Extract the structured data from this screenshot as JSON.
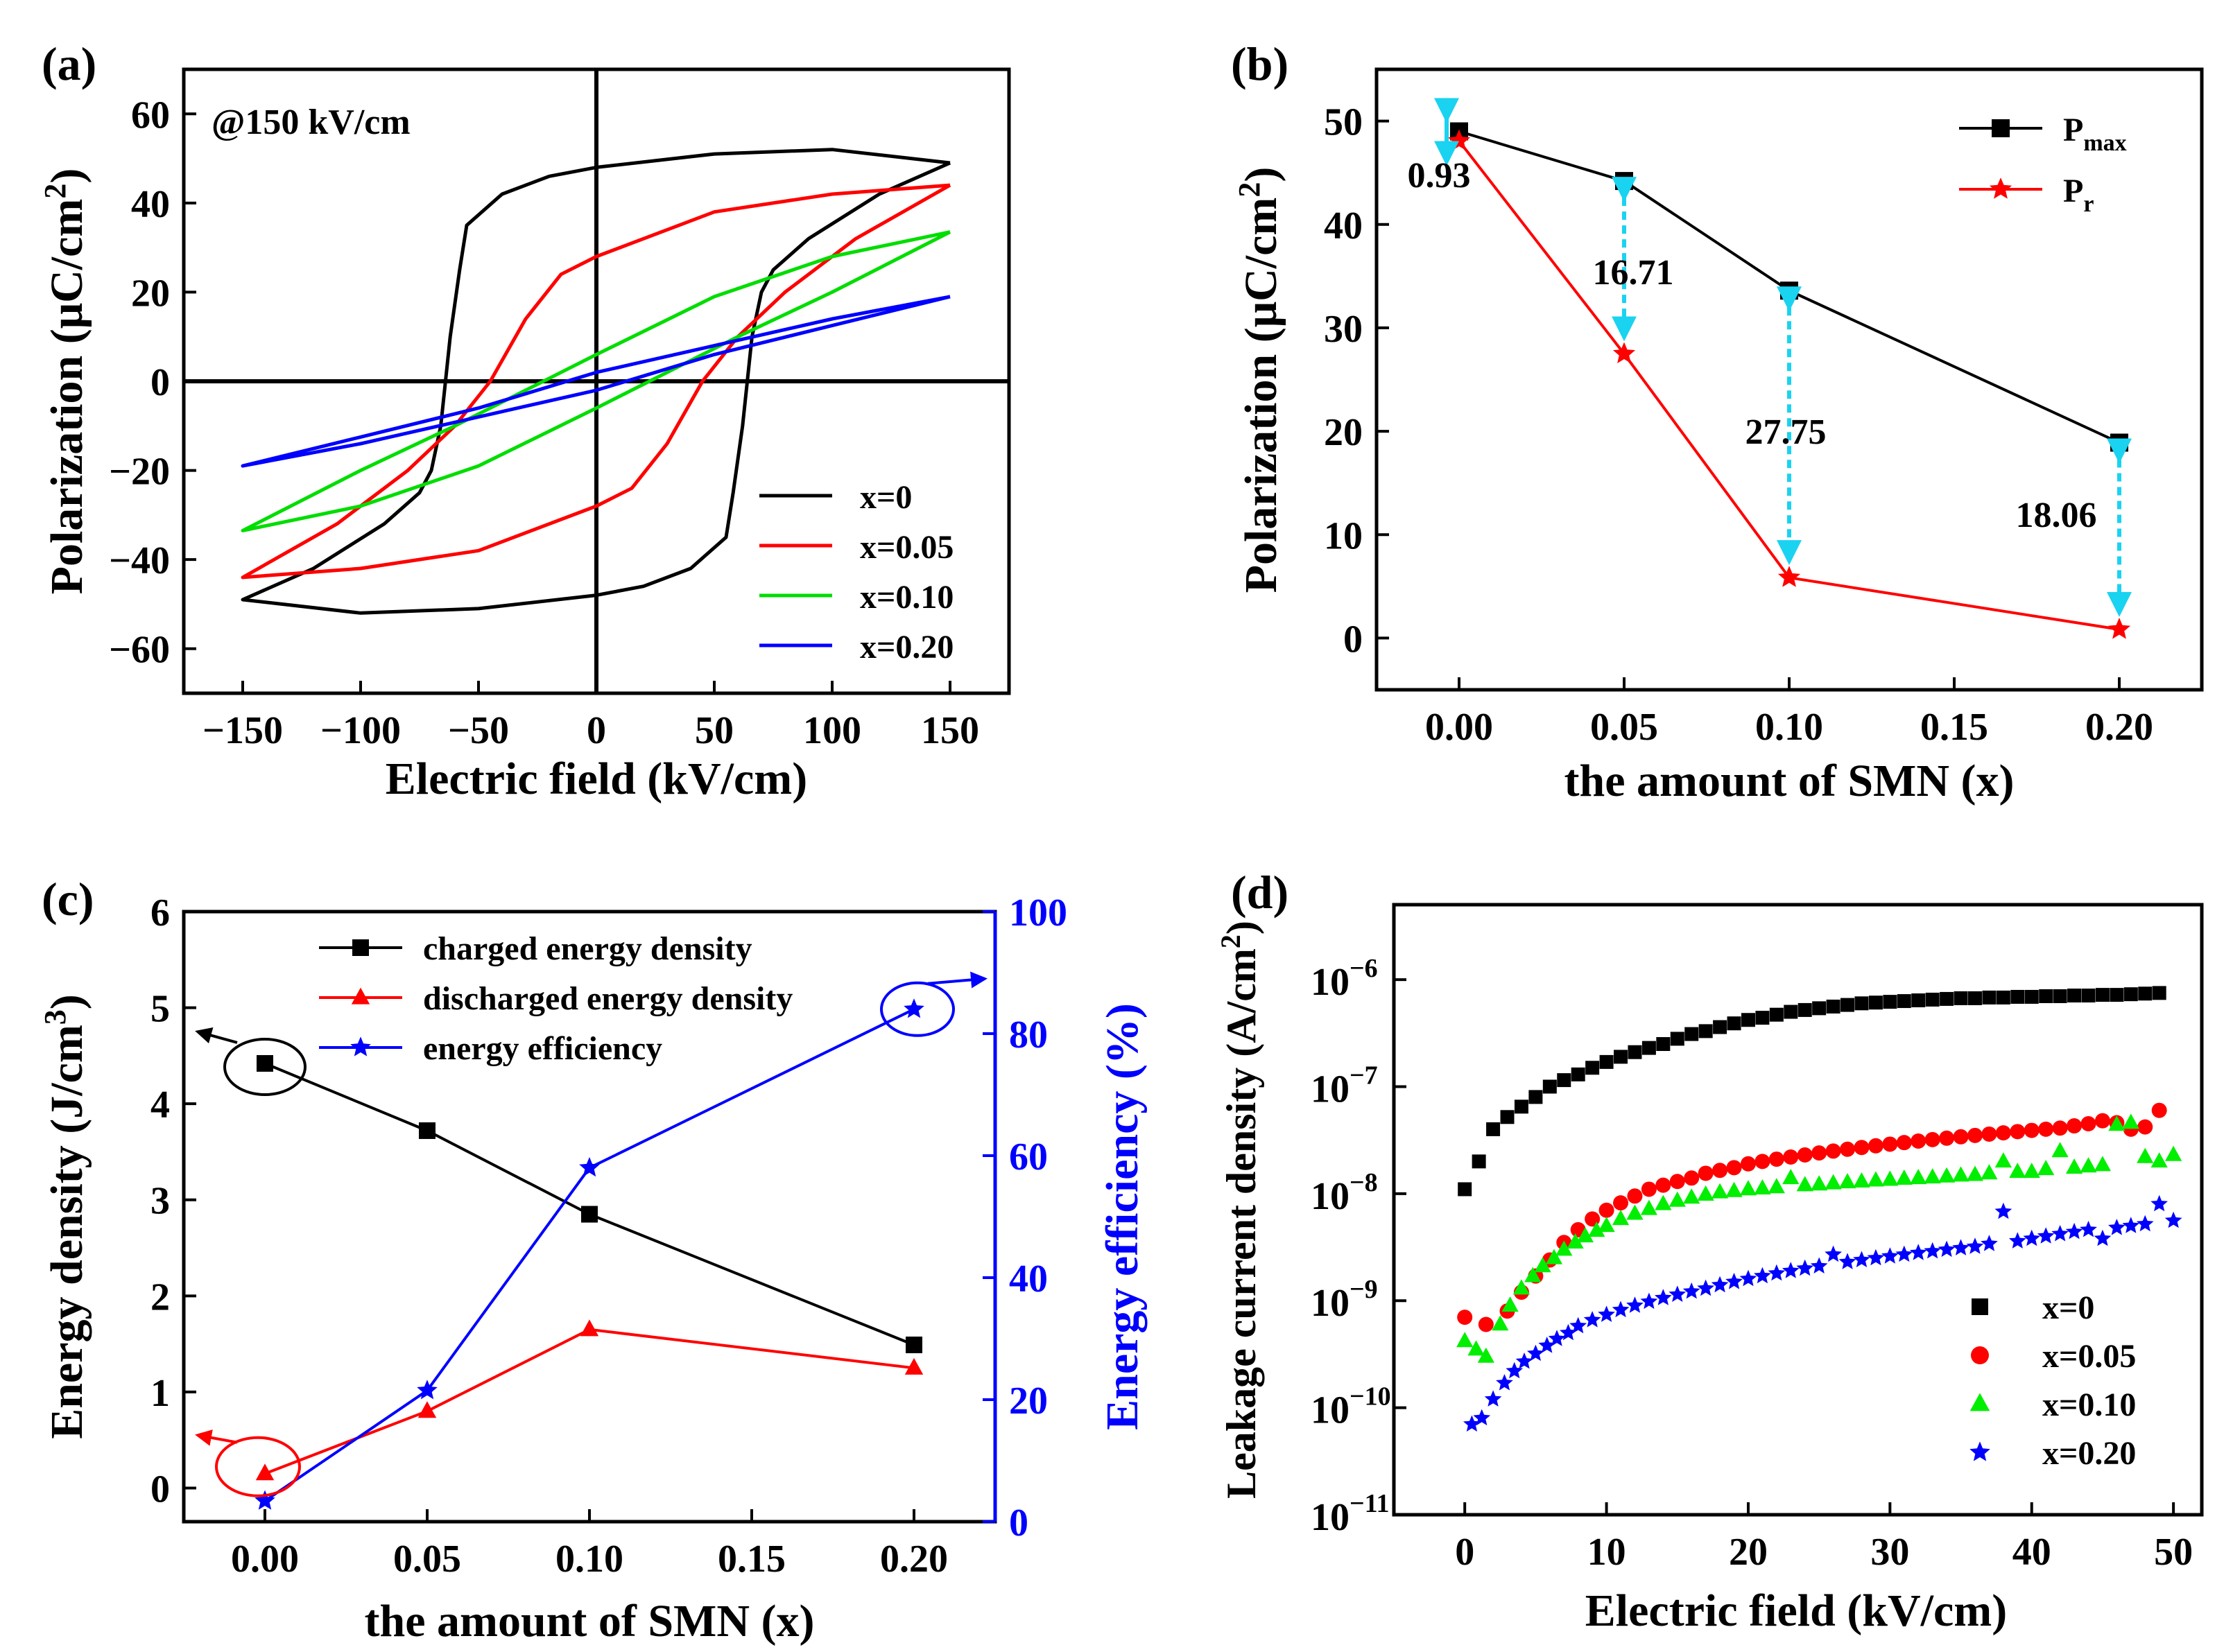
{
  "chart_data": [
    {
      "panel": "a",
      "type": "line",
      "panel_label": "(a)",
      "annotation": "@150 kV/cm",
      "xlabel": "Electric field (kV/cm)",
      "ylabel": "Polarization (μC/cm²)",
      "ylabel_main": "Polarization (μC/cm",
      "ylabel_sup": "2",
      "ylabel_tail": ")",
      "xlim": [
        -175,
        175
      ],
      "ylim": [
        -70,
        70
      ],
      "xticks": [
        -150,
        -100,
        -50,
        0,
        50,
        100,
        150
      ],
      "yticks": [
        -60,
        -40,
        -20,
        0,
        20,
        40,
        60
      ],
      "xtick_labels": [
        "−150",
        "−100",
        "−50",
        "0",
        "50",
        "100",
        "150"
      ],
      "ytick_labels": [
        "−60",
        "−40",
        "−20",
        "0",
        "20",
        "40",
        "60"
      ],
      "legend": [
        "x=0",
        "x=0.05",
        "x=0.10",
        "x=0.20"
      ],
      "series": [
        {
          "name": "x=0",
          "color": "#000000",
          "upper": [
            [
              150,
              49
            ],
            [
              100,
              52
            ],
            [
              50,
              51
            ],
            [
              0,
              48
            ],
            [
              -20,
              46
            ],
            [
              -40,
              42
            ],
            [
              -55,
              35
            ],
            [
              -58,
              25
            ],
            [
              -62,
              10
            ],
            [
              -66,
              -10
            ],
            [
              -70,
              -20
            ],
            [
              -75,
              -25
            ],
            [
              -90,
              -32
            ],
            [
              -120,
              -42
            ],
            [
              -150,
              -49
            ]
          ],
          "lower": [
            [
              -150,
              -49
            ],
            [
              -100,
              -52
            ],
            [
              -50,
              -51
            ],
            [
              0,
              -48
            ],
            [
              20,
              -46
            ],
            [
              40,
              -42
            ],
            [
              55,
              -35
            ],
            [
              58,
              -25
            ],
            [
              62,
              -10
            ],
            [
              66,
              10
            ],
            [
              70,
              20
            ],
            [
              75,
              25
            ],
            [
              90,
              32
            ],
            [
              120,
              42
            ],
            [
              150,
              49
            ]
          ]
        },
        {
          "name": "x=0.05",
          "color": "#ff0000",
          "upper": [
            [
              150,
              44
            ],
            [
              100,
              42
            ],
            [
              50,
              38
            ],
            [
              0,
              28
            ],
            [
              -15,
              24
            ],
            [
              -30,
              14
            ],
            [
              -45,
              0
            ],
            [
              -60,
              -10
            ],
            [
              -80,
              -20
            ],
            [
              -110,
              -32
            ],
            [
              -150,
              -44
            ]
          ],
          "lower": [
            [
              -150,
              -44
            ],
            [
              -100,
              -42
            ],
            [
              -50,
              -38
            ],
            [
              0,
              -28
            ],
            [
              15,
              -24
            ],
            [
              30,
              -14
            ],
            [
              45,
              0
            ],
            [
              60,
              10
            ],
            [
              80,
              20
            ],
            [
              110,
              32
            ],
            [
              150,
              44
            ]
          ]
        },
        {
          "name": "x=0.10",
          "color": "#00dd00",
          "upper": [
            [
              150,
              33.5
            ],
            [
              100,
              28
            ],
            [
              50,
              19
            ],
            [
              0,
              6
            ],
            [
              -30,
              -2
            ],
            [
              -60,
              -10
            ],
            [
              -100,
              -20
            ],
            [
              -150,
              -33.5
            ]
          ],
          "lower": [
            [
              -150,
              -33.5
            ],
            [
              -100,
              -28
            ],
            [
              -50,
              -19
            ],
            [
              0,
              -6
            ],
            [
              30,
              2
            ],
            [
              60,
              10
            ],
            [
              100,
              20
            ],
            [
              150,
              33.5
            ]
          ]
        },
        {
          "name": "x=0.20",
          "color": "#0000ff",
          "upper": [
            [
              150,
              19
            ],
            [
              100,
              14
            ],
            [
              50,
              8
            ],
            [
              0,
              2
            ],
            [
              -50,
              -6
            ],
            [
              -100,
              -12.5
            ],
            [
              -150,
              -19
            ]
          ],
          "lower": [
            [
              -150,
              -19
            ],
            [
              -100,
              -14
            ],
            [
              -50,
              -8
            ],
            [
              0,
              -2
            ],
            [
              50,
              6
            ],
            [
              100,
              12.5
            ],
            [
              150,
              19
            ]
          ]
        }
      ]
    },
    {
      "panel": "b",
      "type": "line",
      "panel_label": "(b)",
      "xlabel": "the amount of SMN (x)",
      "ylabel": "Polarization (μC/cm²)",
      "ylabel_main": "Polarization (μC/cm",
      "ylabel_sup": "2",
      "ylabel_tail": ")",
      "xlim": [
        -0.025,
        0.225
      ],
      "ylim": [
        -5,
        55
      ],
      "xticks": [
        0,
        0.05,
        0.1,
        0.15,
        0.2
      ],
      "yticks": [
        0,
        10,
        20,
        30,
        40,
        50
      ],
      "xtick_labels": [
        "0.00",
        "0.05",
        "0.10",
        "0.15",
        "0.20"
      ],
      "ytick_labels": [
        "0",
        "10",
        "20",
        "30",
        "40",
        "50"
      ],
      "categories": [
        0,
        0.05,
        0.1,
        0.2
      ],
      "series": [
        {
          "name": "Pmax",
          "label_main": "P",
          "label_sub": "max",
          "marker": "square",
          "color": "#000000",
          "values": [
            49.0,
            44.2,
            33.6,
            18.9
          ]
        },
        {
          "name": "Pr",
          "label_main": "P",
          "label_sub": "r",
          "marker": "star",
          "color": "#ff0000",
          "values": [
            48.07,
            27.49,
            5.85,
            0.84
          ]
        }
      ],
      "difference_labels": [
        "0.93",
        "16.71",
        "27.75",
        "18.06"
      ],
      "arrow_color": "#19d3f0"
    },
    {
      "panel": "c",
      "type": "line",
      "panel_label": "(c)",
      "xlabel": "the amount of SMN (x)",
      "ylabel": "Energy density (J/cm³)",
      "ylabel_main": "Energy density (J/cm",
      "ylabel_sup": "3",
      "ylabel_tail": ")",
      "y2label": "Energy efficiency (%)",
      "xlim": [
        -0.025,
        0.225
      ],
      "ylim": [
        -0.35,
        6
      ],
      "y2lim": [
        0,
        100
      ],
      "xticks": [
        0,
        0.05,
        0.1,
        0.15,
        0.2
      ],
      "yticks": [
        0,
        1,
        2,
        3,
        4,
        5,
        6
      ],
      "y2ticks": [
        0,
        20,
        40,
        60,
        80,
        100
      ],
      "xtick_labels": [
        "0.00",
        "0.05",
        "0.10",
        "0.15",
        "0.20"
      ],
      "ytick_labels": [
        "0",
        "1",
        "2",
        "3",
        "4",
        "5",
        "6"
      ],
      "y2tick_labels": [
        "0",
        "20",
        "40",
        "60",
        "80",
        "100"
      ],
      "categories": [
        0,
        0.05,
        0.1,
        0.2
      ],
      "series": [
        {
          "name": "charged energy density",
          "axis": "left",
          "marker": "square",
          "color": "#000000",
          "values": [
            4.42,
            3.72,
            2.85,
            1.49
          ]
        },
        {
          "name": "discharged energy density",
          "axis": "left",
          "marker": "triangle",
          "color": "#ff0000",
          "values": [
            0.15,
            0.8,
            1.65,
            1.25
          ]
        },
        {
          "name": "energy efficiency",
          "axis": "right",
          "marker": "star",
          "color": "#0000ff",
          "values": [
            3.4,
            21.5,
            58.0,
            84.0
          ]
        }
      ]
    },
    {
      "panel": "d",
      "type": "scatter",
      "panel_label": "(d)",
      "xlabel": "Electric field (kV/cm)",
      "ylabel": "Leakage current density (A/cm²)",
      "ylabel_main": "Leakage current density (A/cm",
      "ylabel_sup": "2",
      "ylabel_tail": ")",
      "yscale": "log",
      "xlim": [
        -5,
        52
      ],
      "ylim_log10": [
        -11,
        -5.3
      ],
      "xticks": [
        0,
        10,
        20,
        30,
        40,
        50
      ],
      "xtick_labels": [
        "0",
        "10",
        "20",
        "30",
        "40",
        "50"
      ],
      "ytick_exponents": [
        -11,
        -10,
        -9,
        -8,
        -7,
        -6
      ],
      "ytick_base": "10",
      "ytick_exp_labels": [
        "−11",
        "−10",
        "−9",
        "−8",
        "−7",
        "−6"
      ],
      "series": [
        {
          "name": "x=0",
          "marker": "square",
          "color": "#000000",
          "x": [
            0,
            1,
            2,
            3,
            4,
            5,
            6,
            7,
            8,
            9,
            10,
            11,
            12,
            13,
            14,
            15,
            16,
            17,
            18,
            19,
            20,
            21,
            22,
            23,
            24,
            25,
            26,
            27,
            28,
            29,
            30,
            31,
            32,
            33,
            34,
            35,
            36,
            37,
            38,
            39,
            40,
            41,
            42,
            43,
            44,
            45,
            46,
            47,
            48,
            49
          ],
          "y": [
            1.1e-08,
            2e-08,
            4e-08,
            5.2e-08,
            6.5e-08,
            8e-08,
            1e-07,
            1.15e-07,
            1.3e-07,
            1.5e-07,
            1.7e-07,
            1.9e-07,
            2.1e-07,
            2.3e-07,
            2.5e-07,
            2.8e-07,
            3.1e-07,
            3.3e-07,
            3.6e-07,
            3.9e-07,
            4.2e-07,
            4.4e-07,
            4.7e-07,
            5e-07,
            5.2e-07,
            5.4e-07,
            5.6e-07,
            5.8e-07,
            6e-07,
            6.1e-07,
            6.2e-07,
            6.3e-07,
            6.4e-07,
            6.5e-07,
            6.6e-07,
            6.7e-07,
            6.7e-07,
            6.8e-07,
            6.8e-07,
            6.9e-07,
            6.9e-07,
            7e-07,
            7e-07,
            7.1e-07,
            7.1e-07,
            7.2e-07,
            7.2e-07,
            7.3e-07,
            7.4e-07,
            7.5e-07
          ]
        },
        {
          "name": "x=0.05",
          "marker": "circle",
          "color": "#ff0000",
          "x": [
            0,
            1.5,
            3,
            4,
            5,
            6,
            7,
            8,
            9,
            10,
            11,
            12,
            13,
            14,
            15,
            16,
            17,
            18,
            19,
            20,
            21,
            22,
            23,
            24,
            25,
            26,
            27,
            28,
            29,
            30,
            31,
            32,
            33,
            34,
            35,
            36,
            37,
            38,
            39,
            40,
            41,
            42,
            43,
            44,
            45,
            46,
            47,
            48,
            49
          ],
          "y": [
            7e-10,
            6e-10,
            8e-10,
            1.2e-09,
            1.7e-09,
            2.4e-09,
            3.5e-09,
            4.6e-09,
            5.8e-09,
            7e-09,
            8.2e-09,
            9.5e-09,
            1.1e-08,
            1.2e-08,
            1.3e-08,
            1.4e-08,
            1.55e-08,
            1.65e-08,
            1.75e-08,
            1.9e-08,
            2e-08,
            2.1e-08,
            2.2e-08,
            2.3e-08,
            2.4e-08,
            2.5e-08,
            2.6e-08,
            2.7e-08,
            2.8e-08,
            2.9e-08,
            3e-08,
            3.1e-08,
            3.2e-08,
            3.3e-08,
            3.4e-08,
            3.5e-08,
            3.6e-08,
            3.7e-08,
            3.8e-08,
            3.9e-08,
            4e-08,
            4.1e-08,
            4.3e-08,
            4.5e-08,
            4.8e-08,
            4.6e-08,
            4e-08,
            4.2e-08,
            6e-08
          ]
        },
        {
          "name": "x=0.10",
          "marker": "triangle",
          "color": "#00ee00",
          "x": [
            0,
            0.8,
            1.5,
            2.5,
            3.2,
            4,
            4.8,
            5.5,
            6.3,
            7,
            7.8,
            8.5,
            9.3,
            10,
            11,
            12,
            13,
            14,
            15,
            16,
            17,
            18,
            19,
            20,
            21,
            22,
            23,
            24,
            25,
            26,
            27,
            28,
            29,
            30,
            31,
            32,
            33,
            34,
            35,
            36,
            37,
            38,
            39,
            40,
            41,
            42,
            43,
            44,
            45,
            46,
            47,
            48,
            49,
            50
          ],
          "y": [
            4.2e-10,
            3.5e-10,
            3e-10,
            6e-10,
            9e-10,
            1.3e-09,
            1.7e-09,
            2.1e-09,
            2.5e-09,
            3e-09,
            3.5e-09,
            4e-09,
            4.5e-09,
            5e-09,
            5.8e-09,
            6.5e-09,
            7.2e-09,
            8e-09,
            8.6e-09,
            9.2e-09,
            9.8e-09,
            1.03e-08,
            1.06e-08,
            1.1e-08,
            1.12e-08,
            1.15e-08,
            1.4e-08,
            1.2e-08,
            1.22e-08,
            1.25e-08,
            1.28e-08,
            1.3e-08,
            1.33e-08,
            1.35e-08,
            1.38e-08,
            1.4e-08,
            1.42e-08,
            1.45e-08,
            1.48e-08,
            1.5e-08,
            1.55e-08,
            2e-08,
            1.6e-08,
            1.6e-08,
            1.7e-08,
            2.5e-08,
            1.75e-08,
            1.8e-08,
            1.85e-08,
            4.4e-08,
            4.6e-08,
            2.2e-08,
            2e-08,
            2.3e-08
          ]
        },
        {
          "name": "x=0.20",
          "marker": "star",
          "color": "#0000ff",
          "x": [
            0.5,
            1.2,
            2,
            2.8,
            3.5,
            4.2,
            5,
            5.8,
            6.5,
            7.3,
            8,
            9,
            10,
            11,
            12,
            13,
            14,
            15,
            16,
            17,
            18,
            19,
            20,
            21,
            22,
            23,
            24,
            25,
            26,
            27,
            28,
            29,
            30,
            31,
            32,
            33,
            34,
            35,
            36,
            37,
            38,
            39,
            40,
            41,
            42,
            43,
            44,
            45,
            46,
            47,
            48,
            49,
            50
          ],
          "y": [
            7e-11,
            8e-11,
            1.2e-10,
            1.7e-10,
            2.2e-10,
            2.7e-10,
            3.2e-10,
            3.8e-10,
            4.4e-10,
            5e-10,
            5.8e-10,
            6.6e-10,
            7.4e-10,
            8.2e-10,
            9e-10,
            9.8e-10,
            1.06e-09,
            1.14e-09,
            1.22e-09,
            1.3e-09,
            1.4e-09,
            1.5e-09,
            1.6e-09,
            1.7e-09,
            1.8e-09,
            1.9e-09,
            2e-09,
            2.1e-09,
            2.7e-09,
            2.3e-09,
            2.4e-09,
            2.5e-09,
            2.6e-09,
            2.7e-09,
            2.8e-09,
            2.9e-09,
            3e-09,
            3.1e-09,
            3.2e-09,
            3.4e-09,
            6.8e-09,
            3.6e-09,
            3.8e-09,
            4e-09,
            4.2e-09,
            4.4e-09,
            4.6e-09,
            3.8e-09,
            4.8e-09,
            5e-09,
            5.2e-09,
            8e-09,
            5.6e-09
          ]
        }
      ]
    }
  ]
}
